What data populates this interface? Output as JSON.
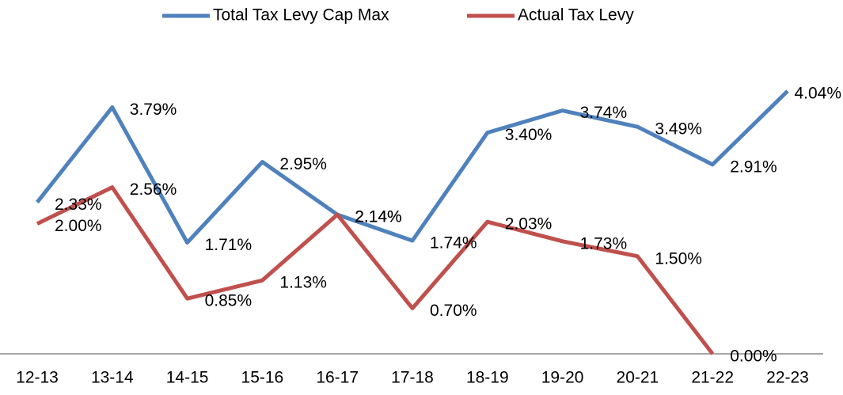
{
  "chart_data": {
    "type": "line",
    "categories": [
      "12-13",
      "13-14",
      "14-15",
      "15-16",
      "16-17",
      "17-18",
      "18-19",
      "19-20",
      "20-21",
      "21-22",
      "22-23"
    ],
    "series": [
      {
        "name": "Total Tax Levy Cap Max",
        "color": "#4f81bd",
        "values": [
          2.33,
          3.79,
          1.71,
          2.95,
          2.14,
          1.74,
          3.4,
          3.74,
          3.49,
          2.91,
          4.04
        ],
        "value_labels": [
          "2.33%",
          "3.79%",
          "1.71%",
          "2.95%",
          "2.14%",
          "1.74%",
          "3.40%",
          "3.74%",
          "3.49%",
          "2.91%",
          "4.04%"
        ]
      },
      {
        "name": "Actual Tax Levy",
        "color": "#c0504d",
        "values": [
          2.0,
          2.56,
          0.85,
          1.13,
          2.14,
          0.7,
          2.03,
          1.73,
          1.5,
          0.0,
          null
        ],
        "value_labels": [
          "2.00%",
          "2.56%",
          "0.85%",
          "1.13%",
          "2.14%",
          "0.70%",
          "2.03%",
          "1.73%",
          "1.50%",
          "0.00%",
          null
        ]
      }
    ],
    "legend": "top"
  }
}
